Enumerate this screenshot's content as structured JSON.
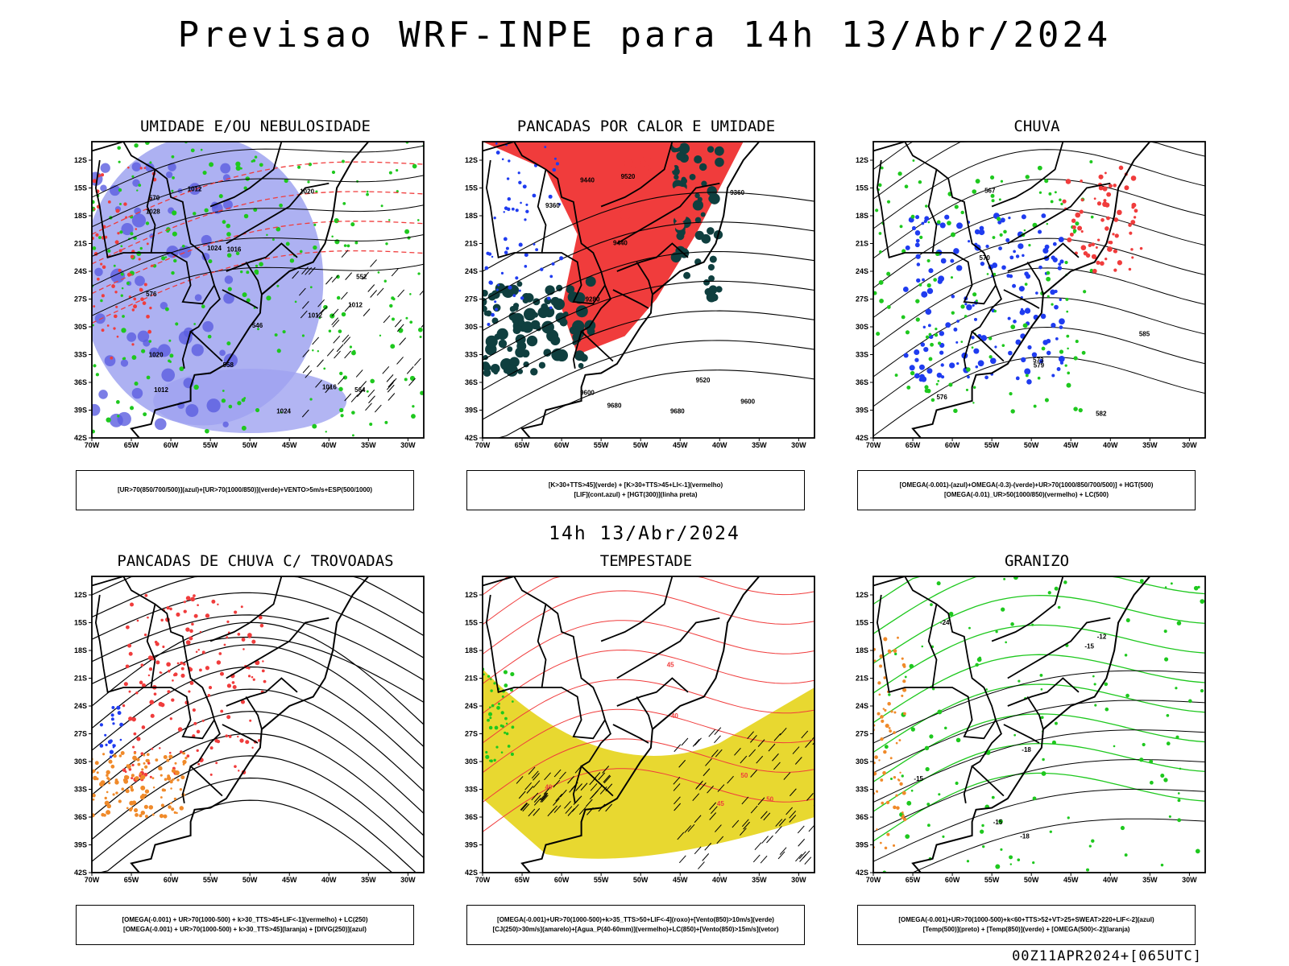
{
  "header": {
    "title": "Previsao WRF-INPE  para 14h 13/Abr/2024",
    "mid_time": "14h 13/Abr/2024",
    "footer_code": "00Z11APR2024+[065UTC]"
  },
  "axes": {
    "lat_labels": [
      "12S",
      "15S",
      "18S",
      "21S",
      "24S",
      "27S",
      "30S",
      "33S",
      "36S",
      "39S",
      "42S"
    ],
    "lon_labels": [
      "70W",
      "65W",
      "60W",
      "55W",
      "50W",
      "45W",
      "40W",
      "35W",
      "30W"
    ]
  },
  "panels": [
    {
      "id": "umidade",
      "title": "UMIDADE E/OU NEBULOSIDADE",
      "legend": [
        "[UR>70(850/700/500)](azul)+[UR>70(1000/850)](verde)+VENTO>5m/s+ESP(500/1000)"
      ],
      "contour_labels": [
        "1012",
        "1012",
        "1012",
        "1012",
        "1016",
        "1016",
        "1020",
        "1020",
        "1024",
        "1024",
        "1028",
        "576",
        "570",
        "564",
        "558",
        "552",
        "546"
      ]
    },
    {
      "id": "pancadas-calor",
      "title": "PANCADAS POR CALOR E UMIDADE",
      "legend": [
        "[K>30+TTS>45](verde) + [K>30+TTS>45+LI<-1](vermelho)",
        "[LIF](cont.azul) + [HGT(300)](linha preta)"
      ],
      "contour_labels": [
        "9680",
        "9680",
        "9600",
        "9520",
        "9440",
        "9360",
        "9280",
        "9600",
        "9520",
        "9440",
        "9360"
      ]
    },
    {
      "id": "chuva",
      "title": "CHUVA",
      "legend": [
        "[OMEGA(-0.001)-(azul)+OMEGA(-0.3)-(verde)+UR>70(1000/850/700/500)] + HGT(500)",
        "[OMEGA(-0.01)_UR>50(1000/850)(vermelho) + LC(500)"
      ],
      "contour_labels": [
        "585",
        "582",
        "579",
        "576",
        "573",
        "570",
        "567"
      ]
    },
    {
      "id": "pancadas-trovoadas",
      "title": "PANCADAS DE CHUVA C/ TROVOADAS",
      "legend": [
        "[OMEGA(-0.001) + UR>70(1000-500) + k>30_TTS>45+LIF<-1](vermelho) + LC(250)",
        "[OMEGA(-0.001) + UR>70(1000-500) + k>30_TTS>45](laranja) + [DIVG(250)](azul)"
      ],
      "contour_labels": []
    },
    {
      "id": "tempestade",
      "title": "TEMPESTADE",
      "legend": [
        "[OMEGA(-0.001)+UR>70(1000-500)+k>35_TTS>50+LIF<-4](roxo)+[Vento(850)>10m/s](verde)",
        "[CJ(250)>30m/s](amarelo)+[Agua_P(40-60mm)](vermelho)+LC(850)+[Vento(850)>15m/s](vetor)"
      ],
      "contour_labels": [
        "40",
        "40",
        "50",
        "50",
        "45",
        "45"
      ]
    },
    {
      "id": "granizo",
      "title": "GRANIZO",
      "legend": [
        "[OMEGA(-0.001)+UR>70(1000-500)+k<60+TTS>52+VT>25+SWEAT>220+LIF<-2](azul)",
        "[Temp(500)](preto) + [Temp(850)](verde) + [OMEGA(500)<-2](laranja)"
      ],
      "contour_labels": [
        "-12",
        "-15",
        "-15",
        "-18",
        "-18",
        "-24",
        "-15"
      ]
    }
  ],
  "colors": {
    "humidity_blue": "#9fa3f0",
    "humidity_blue_dark": "#5b5ee0",
    "green": "#1ec81e",
    "red": "#f03c3c",
    "dark_green": "#0f3f3f",
    "orange": "#f08a2a",
    "yellow": "#e8d830",
    "blue": "#1f3cf0"
  }
}
